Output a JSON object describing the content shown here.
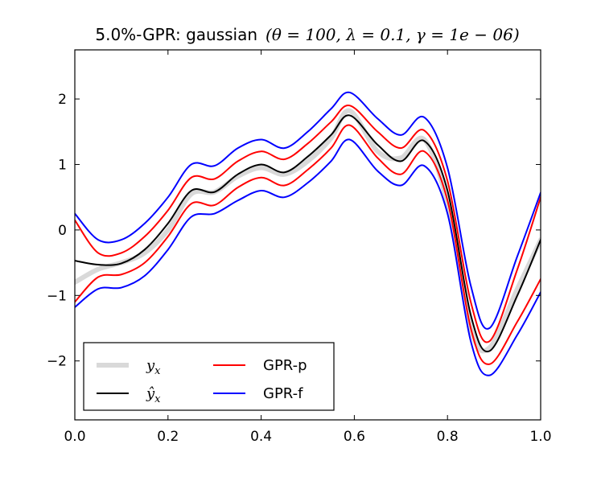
{
  "chart_data": {
    "type": "line",
    "title": "5.0%-GPR: gaussian (θ = 100, λ = 0.1, γ = 1e − 06)",
    "title_prefix": "5.0%-GPR: gaussian",
    "title_params": "(θ = 100, λ = 0.1, γ = 1e − 06)",
    "xlabel": "",
    "ylabel": "",
    "xlim": [
      0.0,
      1.0
    ],
    "ylim": [
      -2.9,
      2.75
    ],
    "x_ticks": [
      0.0,
      0.2,
      0.4,
      0.6,
      0.8,
      1.0
    ],
    "x_tick_labels": [
      "0.0",
      "0.2",
      "0.4",
      "0.6",
      "0.8",
      "1.0"
    ],
    "y_ticks": [
      -2,
      -1,
      0,
      1,
      2
    ],
    "y_tick_labels": [
      "−2",
      "−1",
      "0",
      "1",
      "2"
    ],
    "grid": false,
    "legend_position": "lower-left",
    "legend": [
      {
        "label": "y_x",
        "color": "#d9d9d9"
      },
      {
        "label": "ŷ_x",
        "color": "#000000"
      },
      {
        "label": "GPR-p",
        "color": "#ff0000"
      },
      {
        "label": "GPR-f",
        "color": "#0000ff"
      }
    ],
    "x": [
      0.0,
      0.05,
      0.1,
      0.15,
      0.2,
      0.25,
      0.3,
      0.35,
      0.4,
      0.45,
      0.5,
      0.55,
      0.59,
      0.65,
      0.7,
      0.75,
      0.8,
      0.85,
      0.89,
      0.95,
      1.0
    ],
    "series": [
      {
        "name": "y_x",
        "color": "#d9d9d9",
        "width": 6,
        "values": [
          -0.8,
          -0.6,
          -0.5,
          -0.35,
          0.0,
          0.55,
          0.58,
          0.82,
          0.95,
          0.85,
          1.05,
          1.4,
          1.82,
          1.2,
          1.1,
          1.38,
          0.4,
          -1.5,
          -1.8,
          -0.9,
          -0.15
        ]
      },
      {
        "name": "ŷ_x",
        "color": "#000000",
        "width": 2,
        "values": [
          -0.47,
          -0.53,
          -0.51,
          -0.3,
          0.1,
          0.6,
          0.58,
          0.85,
          1.0,
          0.88,
          1.12,
          1.45,
          1.75,
          1.3,
          1.05,
          1.36,
          0.6,
          -1.3,
          -1.85,
          -1.0,
          -0.15
        ]
      },
      {
        "name": "GPR-p upper",
        "color": "#ff0000",
        "width": 2,
        "values": [
          0.15,
          -0.35,
          -0.35,
          -0.1,
          0.3,
          0.8,
          0.78,
          1.05,
          1.2,
          1.08,
          1.32,
          1.65,
          1.9,
          1.5,
          1.25,
          1.52,
          0.75,
          -1.1,
          -1.7,
          -0.6,
          0.5
        ]
      },
      {
        "name": "GPR-p lower",
        "color": "#ff0000",
        "width": 2,
        "values": [
          -1.1,
          -0.72,
          -0.68,
          -0.5,
          -0.1,
          0.4,
          0.38,
          0.65,
          0.8,
          0.68,
          0.92,
          1.25,
          1.6,
          1.1,
          0.85,
          1.2,
          0.45,
          -1.5,
          -2.05,
          -1.4,
          -0.75
        ]
      },
      {
        "name": "GPR-f upper",
        "color": "#0000ff",
        "width": 2,
        "values": [
          0.25,
          -0.15,
          -0.15,
          0.1,
          0.5,
          1.0,
          0.98,
          1.25,
          1.38,
          1.25,
          1.5,
          1.85,
          2.1,
          1.7,
          1.45,
          1.72,
          0.95,
          -0.85,
          -1.5,
          -0.4,
          0.57
        ]
      },
      {
        "name": "GPR-f lower",
        "color": "#0000ff",
        "width": 2,
        "values": [
          -1.18,
          -0.9,
          -0.88,
          -0.7,
          -0.3,
          0.2,
          0.25,
          0.45,
          0.6,
          0.5,
          0.72,
          1.05,
          1.38,
          0.9,
          0.68,
          0.98,
          0.25,
          -1.7,
          -2.22,
          -1.6,
          -0.95
        ]
      }
    ]
  }
}
